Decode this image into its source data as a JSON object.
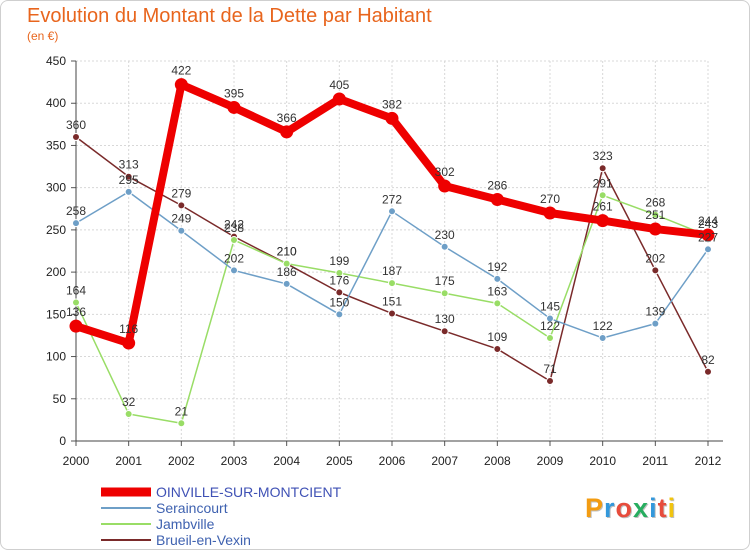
{
  "title": "Evolution du Montant de la Dette par Habitant",
  "subtitle": "(en €)",
  "logo": {
    "text": "Proxiti",
    "colors": [
      "#f39c12",
      "#3498db",
      "#e74c3c",
      "#27ae60",
      "#3498db",
      "#e74c3c",
      "#f1c40f"
    ]
  },
  "chart_data": {
    "type": "line",
    "title": "Evolution du Montant de la Dette par Habitant",
    "ylabel": "",
    "xlabel": "",
    "ylim": [
      0,
      450
    ],
    "yticks": [
      0,
      50,
      100,
      150,
      200,
      250,
      300,
      350,
      400,
      450
    ],
    "grid": true,
    "legend": "bottom-left",
    "x": [
      "2000",
      "2001",
      "2002",
      "2003",
      "2004",
      "2005",
      "2006",
      "2007",
      "2008",
      "2009",
      "2010",
      "2011",
      "2012"
    ],
    "series": [
      {
        "name": "OINVILLE-SUR-MONTCIENT",
        "color": "#ee0000",
        "values": [
          136,
          116,
          422,
          395,
          366,
          405,
          382,
          302,
          286,
          270,
          261,
          251,
          244
        ],
        "labels": [
          "136",
          "116",
          "422",
          "395",
          "366",
          "405",
          "382",
          "302",
          "286",
          "270",
          "261",
          "251",
          "244"
        ]
      },
      {
        "name": "Seraincourt",
        "color": "#6e9fc7",
        "values": [
          258,
          295,
          249,
          202,
          186,
          150,
          272,
          230,
          192,
          145,
          122,
          139,
          227
        ],
        "labels": [
          "258",
          "295",
          "249",
          "202",
          "186",
          "150",
          "272",
          "230",
          "192",
          "145",
          "122",
          "139",
          "227"
        ]
      },
      {
        "name": "Jambville",
        "color": "#99dd66",
        "values": [
          164,
          32,
          21,
          238,
          210,
          199,
          187,
          175,
          163,
          122,
          291,
          268,
          243
        ],
        "labels": [
          "164",
          "32",
          "21",
          "238",
          "210",
          "199",
          "187",
          "175",
          "163",
          "122",
          "291",
          "268",
          "243"
        ]
      },
      {
        "name": "Brueil-en-Vexin",
        "color": "#7a2a2a",
        "values": [
          360,
          313,
          279,
          242,
          210,
          176,
          151,
          130,
          109,
          71,
          323,
          202,
          82
        ],
        "labels": [
          "360",
          "313",
          "279",
          "242",
          "210",
          "176",
          "151",
          "130",
          "109",
          "71",
          "323",
          "202",
          "82"
        ]
      }
    ]
  }
}
